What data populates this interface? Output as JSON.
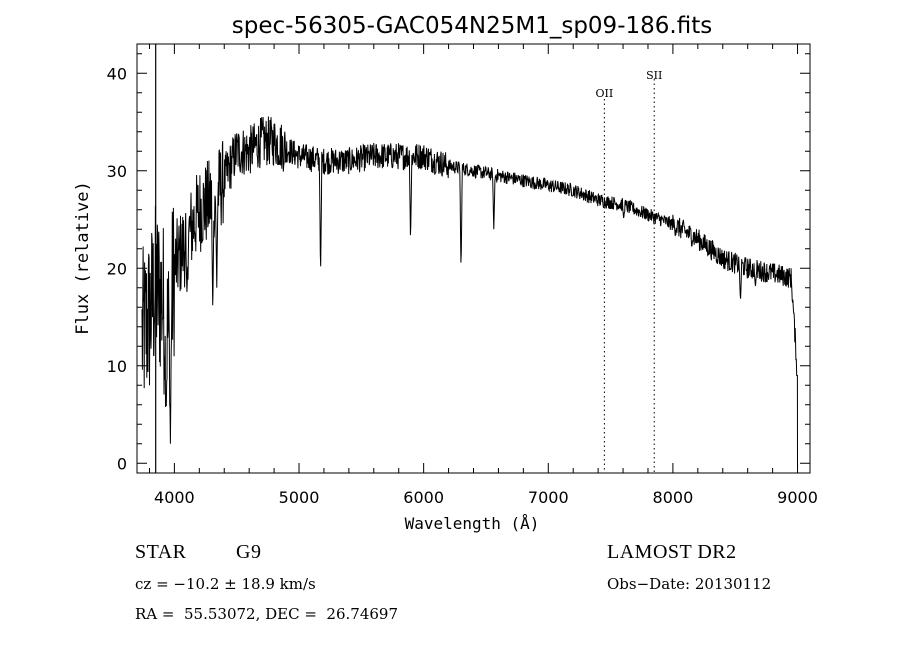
{
  "chart_data": {
    "type": "line",
    "title": "spec-56305-GAC054N25M1_sp09-186.fits",
    "xlabel": "Wavelength (Å)",
    "ylabel": "Flux (relative)",
    "xlim": [
      3700,
      9100
    ],
    "ylim": [
      -1,
      43
    ],
    "xticks": [
      4000,
      5000,
      6000,
      7000,
      8000,
      9000
    ],
    "yticks": [
      0,
      10,
      20,
      30,
      40
    ],
    "grid": false,
    "line_markers": [
      {
        "label": "OII",
        "x": 7450
      },
      {
        "label": "SII",
        "x": 7850
      }
    ],
    "spectrum_anchors": {
      "x": [
        3740,
        3800,
        3850,
        3900,
        3950,
        4000,
        4100,
        4200,
        4300,
        4400,
        4500,
        4600,
        4700,
        4800,
        5000,
        5200,
        5400,
        5600,
        5800,
        6000,
        6200,
        6400,
        6600,
        6800,
        7000,
        7200,
        7400,
        7600,
        7800,
        8000,
        8200,
        8400,
        8600,
        8800,
        8950,
        9000
      ],
      "y": [
        13,
        15,
        18,
        17,
        13,
        20,
        23,
        26,
        27,
        29,
        32,
        32,
        33,
        33,
        31.5,
        31,
        31,
        31.5,
        31.5,
        31.5,
        30.5,
        30,
        29.5,
        29,
        28.5,
        28,
        27,
        26.5,
        25.5,
        24.5,
        23,
        21,
        20,
        19.5,
        19,
        9
      ]
    },
    "absorption_features": [
      {
        "x": 3968,
        "y": 2
      },
      {
        "x": 3934,
        "y": 5
      },
      {
        "x": 4101,
        "y": 17
      },
      {
        "x": 4308,
        "y": 15
      },
      {
        "x": 4340,
        "y": 18
      },
      {
        "x": 5173,
        "y": 19
      },
      {
        "x": 5895,
        "y": 22.5
      },
      {
        "x": 6300,
        "y": 19.5
      },
      {
        "x": 6563,
        "y": 24
      },
      {
        "x": 7605,
        "y": 25
      },
      {
        "x": 8542,
        "y": 16.5
      },
      {
        "x": 8662,
        "y": 18
      }
    ]
  },
  "info": {
    "class_label": "STAR",
    "subclass": "G9",
    "redshift_text": "cz = −10.2 ± 18.9 km/s",
    "coords_text": "RA =  55.53072, DEC =  26.74697",
    "survey": "LAMOST DR2",
    "obs_date_text": "Obs−Date: 20130112"
  }
}
